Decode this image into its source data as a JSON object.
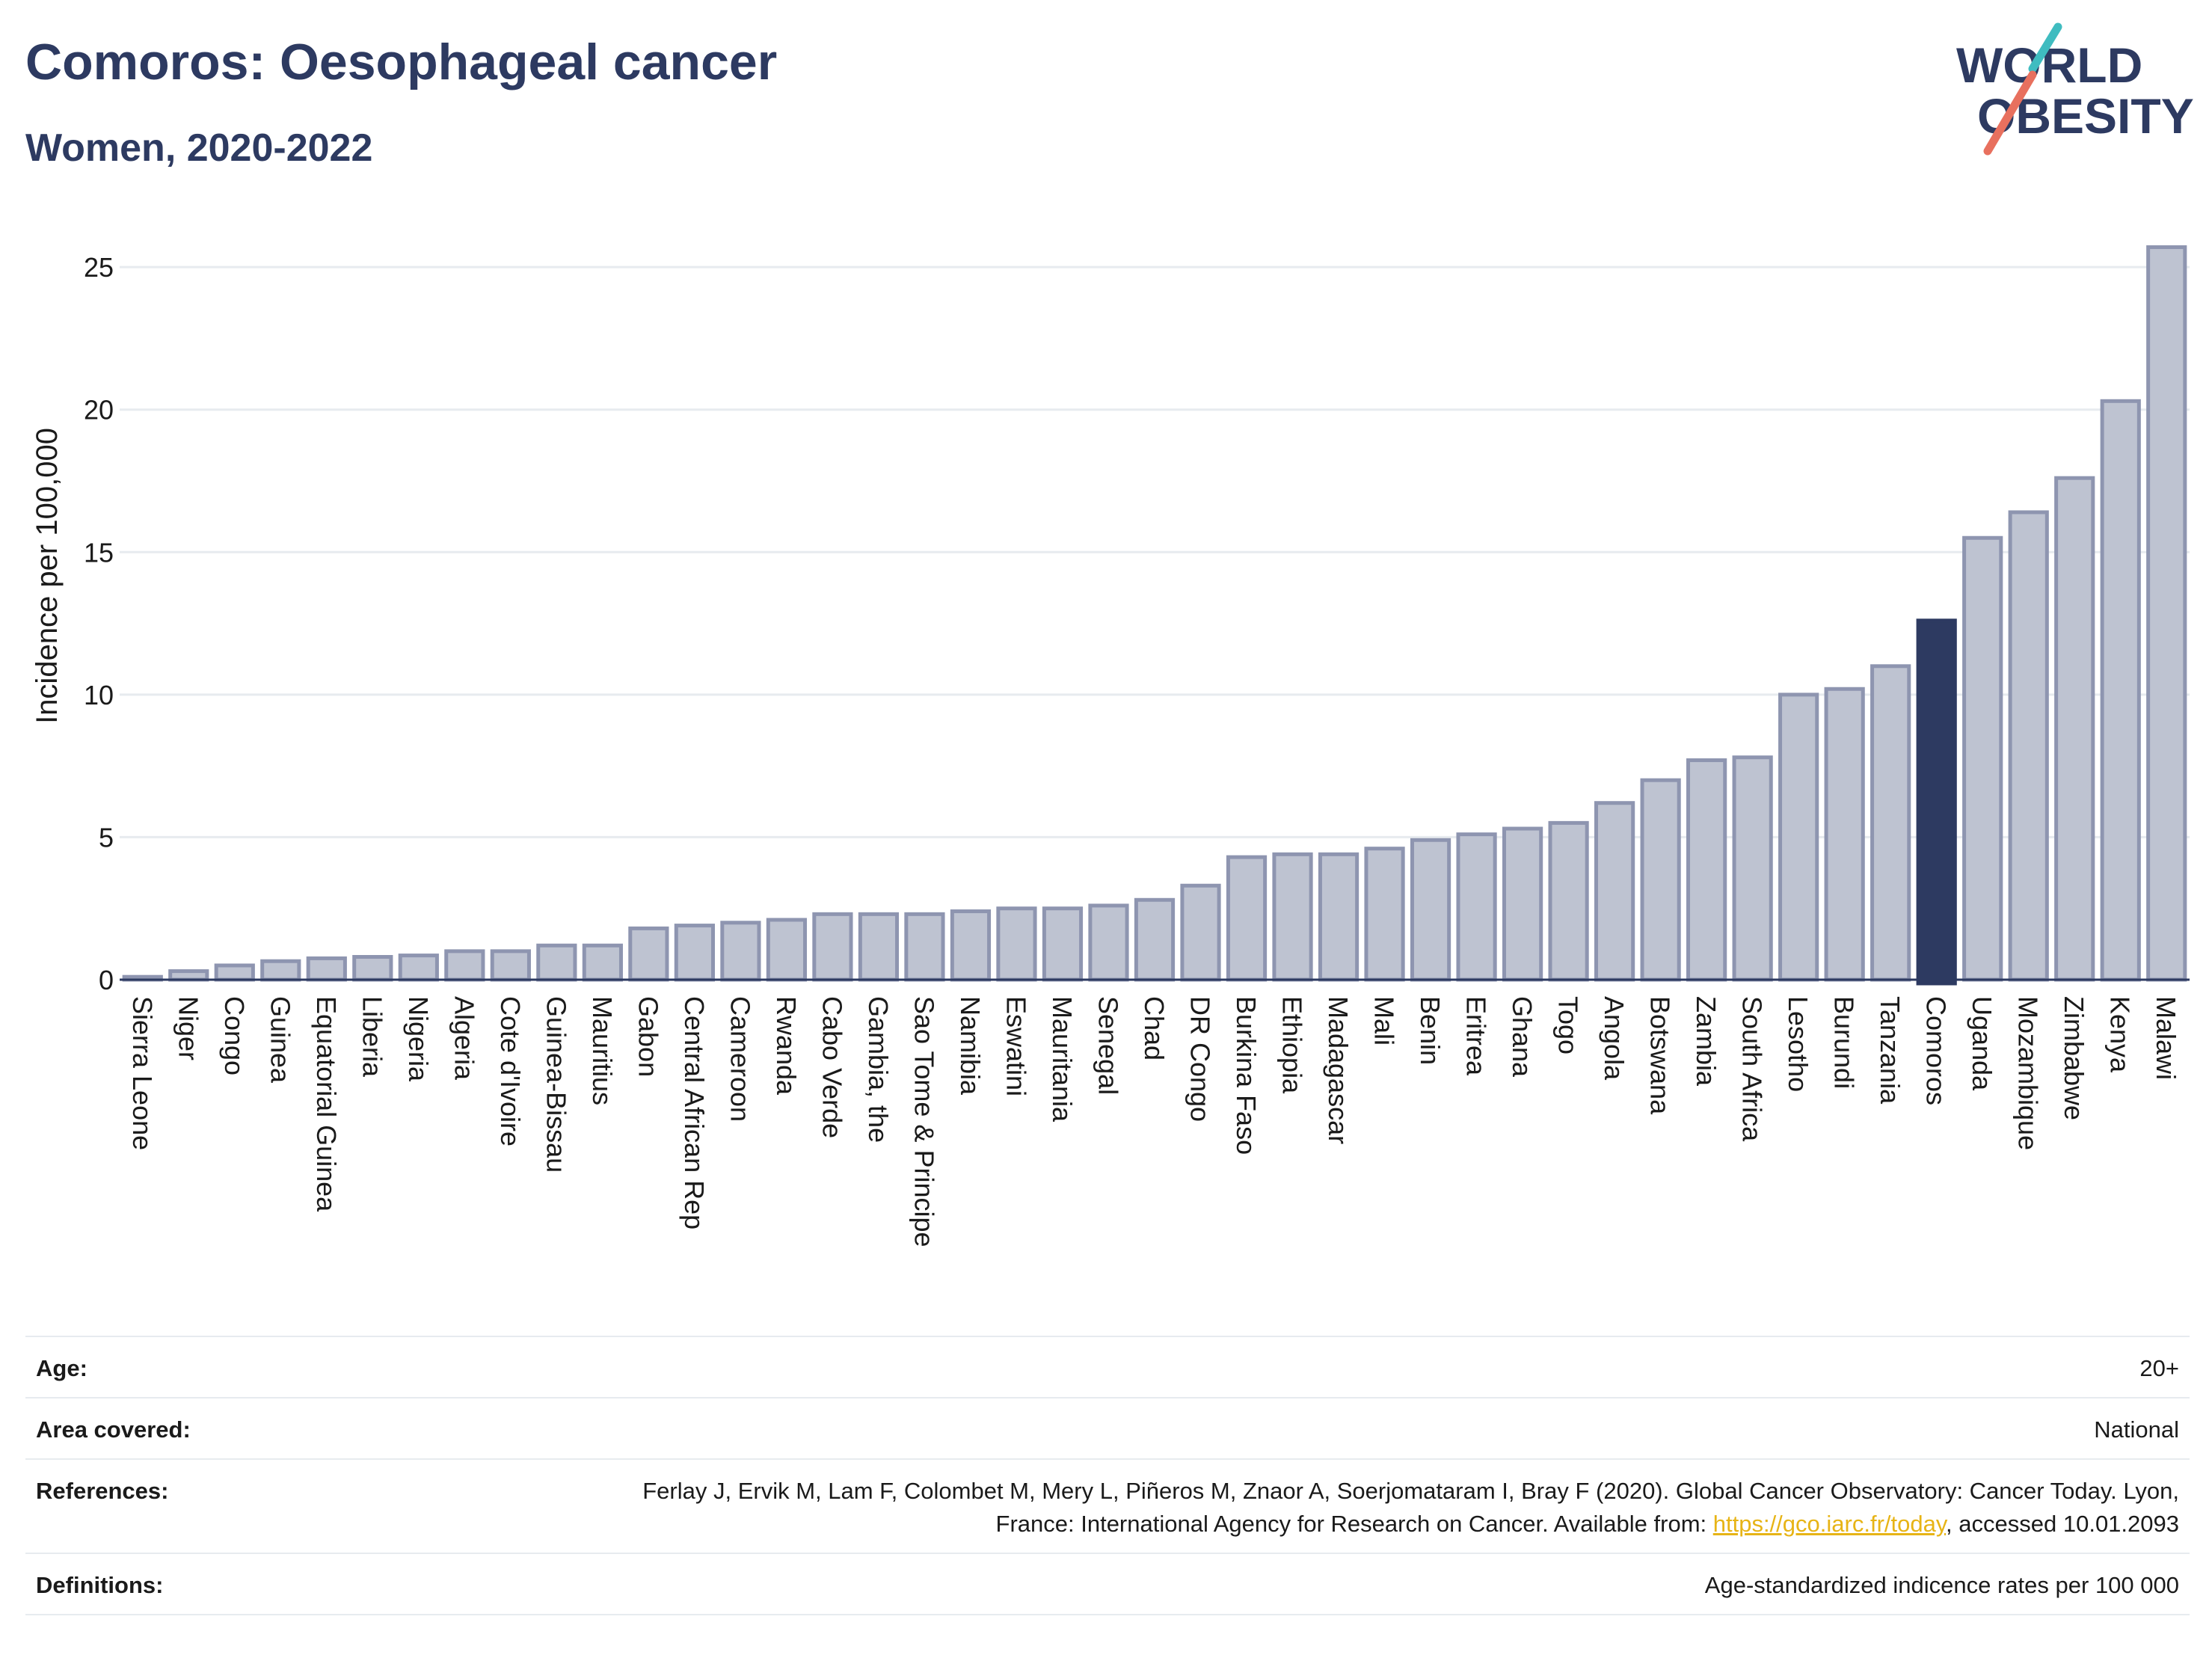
{
  "header": {
    "title": "Comoros: Oesophageal cancer",
    "subtitle": "Women, 2020-2022",
    "logo_line1": "WORLD",
    "logo_line2": "OBESITY"
  },
  "colors": {
    "bar": "#bec3d1",
    "bar_border": "#8e95b0",
    "highlight": "#2d3a61",
    "text": "#2d3a61",
    "grid": "#e7ebef",
    "logo_teal": "#3fbcc0",
    "logo_coral": "#e8705e",
    "link": "#e7b416"
  },
  "chart_data": {
    "type": "bar",
    "title": "Comoros: Oesophageal cancer",
    "subtitle": "Women, 2020-2022",
    "xlabel": "",
    "ylabel": "Incidence per 100,000",
    "ylim": [
      0,
      26.5
    ],
    "yticks": [
      0,
      5,
      10,
      15,
      20,
      25
    ],
    "grid": true,
    "highlight": "Comoros",
    "categories": [
      "Sierra Leone",
      "Niger",
      "Congo",
      "Guinea",
      "Equatorial Guinea",
      "Liberia",
      "Nigeria",
      "Algeria",
      "Cote d'Ivoire",
      "Guinea-Bissau",
      "Mauritius",
      "Gabon",
      "Central African Rep",
      "Cameroon",
      "Rwanda",
      "Cabo Verde",
      "Gambia, the",
      "Sao Tome & Principe",
      "Namibia",
      "Eswatini",
      "Mauritania",
      "Senegal",
      "Chad",
      "DR Congo",
      "Burkina Faso",
      "Ethiopia",
      "Madagascar",
      "Mali",
      "Benin",
      "Eritrea",
      "Ghana",
      "Togo",
      "Angola",
      "Botswana",
      "Zambia",
      "South Africa",
      "Lesotho",
      "Burundi",
      "Tanzania",
      "Comoros",
      "Uganda",
      "Mozambique",
      "Zimbabwe",
      "Kenya",
      "Malawi"
    ],
    "values": [
      0.1,
      0.3,
      0.5,
      0.65,
      0.75,
      0.8,
      0.85,
      1.0,
      1.0,
      1.2,
      1.2,
      1.8,
      1.9,
      2.0,
      2.1,
      2.3,
      2.3,
      2.3,
      2.4,
      2.5,
      2.5,
      2.6,
      2.8,
      3.3,
      4.3,
      4.4,
      4.4,
      4.6,
      4.9,
      5.1,
      5.3,
      5.5,
      6.2,
      7.0,
      7.7,
      7.8,
      10.0,
      10.2,
      11.0,
      12.6,
      15.5,
      16.4,
      17.6,
      20.3,
      25.7
    ]
  },
  "info": {
    "age_label": "Age:",
    "age_value": "20+",
    "area_label": "Area covered:",
    "area_value": "National",
    "refs_label": "References:",
    "refs_text1": "Ferlay J, Ervik M, Lam F, Colombet M, Mery L, Piñeros M, Znaor A, Soerjomataram I, Bray F (2020). Global Cancer Observatory: Cancer Today. Lyon, France: International Agency for Research on Cancer. Available from: ",
    "refs_link": "https://gco.iarc.fr/today",
    "refs_text2": ", accessed 10.01.2093",
    "defs_label": "Definitions:",
    "defs_value": "Age-standardized indicence rates per 100 000"
  }
}
